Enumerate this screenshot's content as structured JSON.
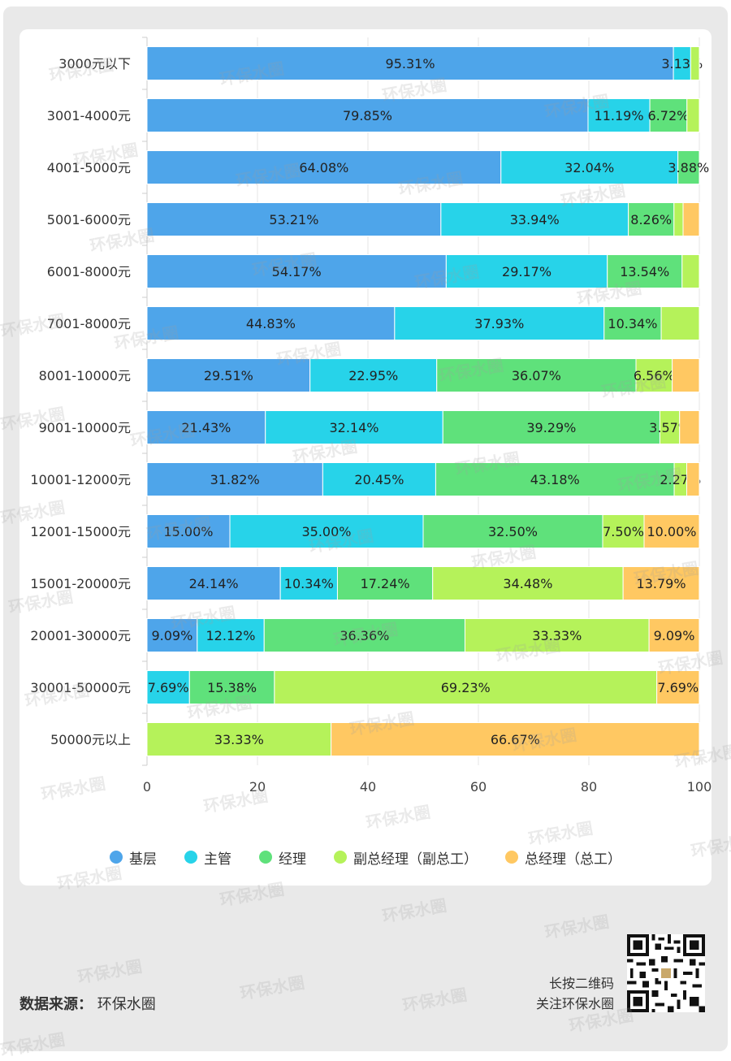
{
  "chart_data": {
    "type": "bar",
    "orientation": "horizontal",
    "stacked": true,
    "categories": [
      "3000元以下",
      "3001-4000元",
      "4001-5000元",
      "5001-6000元",
      "6001-8000元",
      "7001-8000元",
      "8001-10000元",
      "9001-10000元",
      "10001-12000元",
      "12001-15000元",
      "15001-20000元",
      "20001-30000元",
      "30001-50000元",
      "50000元以上"
    ],
    "series": [
      {
        "name": "基层",
        "color": "#4ea5ea",
        "values": [
          95.31,
          79.85,
          64.08,
          53.21,
          54.17,
          44.83,
          29.51,
          21.43,
          31.82,
          15.0,
          24.14,
          9.09,
          0,
          0
        ]
      },
      {
        "name": "主管",
        "color": "#27d3e9",
        "values": [
          3.13,
          11.19,
          32.04,
          33.94,
          29.17,
          37.93,
          22.95,
          32.14,
          20.45,
          35.0,
          10.34,
          12.12,
          7.69,
          0
        ]
      },
      {
        "name": "经理",
        "color": "#5fe17b",
        "values": [
          0,
          6.72,
          3.88,
          8.26,
          13.54,
          10.34,
          36.07,
          39.29,
          43.18,
          32.5,
          17.24,
          36.36,
          15.38,
          0
        ]
      },
      {
        "name": "副总经理（副总工）",
        "color": "#b5f25a",
        "values": [
          1.56,
          2.24,
          0,
          1.65,
          3.12,
          6.9,
          6.56,
          3.57,
          2.27,
          7.5,
          34.48,
          33.33,
          69.23,
          33.33
        ]
      },
      {
        "name": "总经理（总工）",
        "color": "#ffc862",
        "values": [
          0,
          0,
          0,
          2.94,
          0,
          0,
          4.91,
          3.57,
          2.28,
          10.0,
          13.79,
          9.09,
          7.69,
          66.67
        ]
      }
    ],
    "labels": [
      [
        "95.31%",
        "3.13%",
        "",
        "",
        ""
      ],
      [
        "79.85%",
        "11.19%",
        "6.72%",
        "",
        ""
      ],
      [
        "64.08%",
        "32.04%",
        "3.88%",
        "",
        ""
      ],
      [
        "53.21%",
        "33.94%",
        "8.26%",
        "",
        ""
      ],
      [
        "54.17%",
        "29.17%",
        "13.54%",
        "",
        ""
      ],
      [
        "44.83%",
        "37.93%",
        "10.34%",
        "",
        ""
      ],
      [
        "29.51%",
        "22.95%",
        "36.07%",
        "6.56%",
        ""
      ],
      [
        "21.43%",
        "32.14%",
        "39.29%",
        "3.57%",
        ""
      ],
      [
        "31.82%",
        "20.45%",
        "43.18%",
        "2.27%",
        ""
      ],
      [
        "15.00%",
        "35.00%",
        "32.50%",
        "7.50%",
        "10.00%"
      ],
      [
        "24.14%",
        "10.34%",
        "17.24%",
        "34.48%",
        "13.79%"
      ],
      [
        "9.09%",
        "12.12%",
        "36.36%",
        "33.33%",
        "9.09%"
      ],
      [
        "",
        "7.69%",
        "15.38%",
        "69.23%",
        "7.69%"
      ],
      [
        "",
        "",
        "",
        "33.33%",
        "66.67%"
      ]
    ],
    "xlim": [
      0,
      100
    ],
    "xticks": [
      "0",
      "20",
      "40",
      "60",
      "80",
      "100"
    ],
    "grid": true,
    "legend_position": "bottom"
  },
  "legend": [
    {
      "label": "基层",
      "color": "#4ea5ea"
    },
    {
      "label": "主管",
      "color": "#27d3e9"
    },
    {
      "label": "经理",
      "color": "#5fe17b"
    },
    {
      "label": "副总经理（副总工）",
      "color": "#b5f25a"
    },
    {
      "label": "总经理（总工）",
      "color": "#ffc862"
    }
  ],
  "footer": {
    "source_label": "数据来源：",
    "source_value": "环保水圈",
    "qr_line1": "长按二维码",
    "qr_line2": "关注环保水圈"
  },
  "watermark": "环保水圈"
}
